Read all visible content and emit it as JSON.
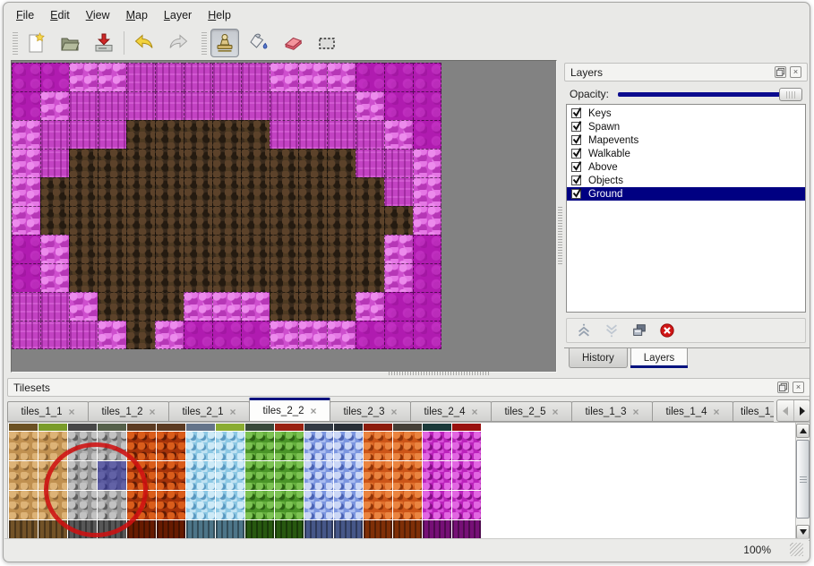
{
  "menu": {
    "items": [
      {
        "label": "File"
      },
      {
        "label": "Edit"
      },
      {
        "label": "View"
      },
      {
        "label": "Map"
      },
      {
        "label": "Layer"
      },
      {
        "label": "Help"
      }
    ]
  },
  "toolbar": {
    "groups": [
      {
        "buttons": [
          {
            "name": "new-file"
          },
          {
            "name": "open-file"
          },
          {
            "name": "save-file"
          }
        ]
      },
      {
        "buttons": [
          {
            "name": "undo"
          },
          {
            "name": "redo",
            "disabled": true
          }
        ]
      },
      {
        "buttons": [
          {
            "name": "stamp-tool",
            "active": true
          },
          {
            "name": "fill-tool"
          },
          {
            "name": "eraser-tool"
          },
          {
            "name": "rect-select-tool"
          }
        ]
      }
    ]
  },
  "map": {
    "legend": {
      "D": {
        "name": "dark-magenta-floor",
        "color": "#b01bb0"
      },
      "P": {
        "name": "pink-rock",
        "color": "#ce4fce"
      },
      "M": {
        "name": "magenta-wall-face",
        "color": "#c343c3"
      },
      "B": {
        "name": "dark-brown-rock",
        "color": "#3a2b1d"
      }
    },
    "grid": [
      "DDPPMMMMMPPPDDD",
      "DPMMMMMMMMMMPDD",
      "PMMMBBBBBMMMMPD",
      "PMBBBBBBBBBBMMP",
      "PBBBBBBBBBBBBMP",
      "PBBBBBBBBBBBBBP",
      "DPBBBBBBBBBBBPD",
      "DPBBBBBBBBBBBPD",
      "MMPBBBPPPBBBPDD",
      "MMMPBPDDDPPPDDD"
    ]
  },
  "layers_panel": {
    "title": "Layers",
    "float_icon": "float-icon",
    "close_icon": "close-icon",
    "opacity_label": "Opacity:",
    "opacity_percent": 100,
    "layers": [
      {
        "name": "Keys",
        "checked": true
      },
      {
        "name": "Spawn",
        "checked": true
      },
      {
        "name": "Mapevents",
        "checked": true
      },
      {
        "name": "Walkable",
        "checked": true
      },
      {
        "name": "Above",
        "checked": true
      },
      {
        "name": "Objects",
        "checked": true
      },
      {
        "name": "Ground",
        "checked": true,
        "selected": true
      }
    ],
    "toolbar_buttons": [
      {
        "name": "move-layer-up",
        "disabled": true
      },
      {
        "name": "move-layer-down",
        "disabled": true
      },
      {
        "name": "duplicate-layer"
      },
      {
        "name": "delete-layer"
      }
    ],
    "tabs": [
      {
        "label": "History",
        "active": false
      },
      {
        "label": "Layers",
        "active": true
      }
    ]
  },
  "tilesets_panel": {
    "title": "Tilesets",
    "tabs": [
      {
        "label": "tiles_1_1"
      },
      {
        "label": "tiles_1_2"
      },
      {
        "label": "tiles_2_1"
      },
      {
        "label": "tiles_2_2",
        "active": true
      },
      {
        "label": "tiles_2_3"
      },
      {
        "label": "tiles_2_4"
      },
      {
        "label": "tiles_2_5"
      },
      {
        "label": "tiles_1_3"
      },
      {
        "label": "tiles_1_4"
      },
      {
        "label": "tiles_1_",
        "truncated": true
      }
    ],
    "columns": [
      "tan",
      "tan",
      "gray",
      "gray",
      "lava",
      "lava",
      "sky",
      "sky",
      "green",
      "green",
      "crystal",
      "crystal",
      "orange",
      "orange",
      "magenta",
      "magenta"
    ],
    "sliver_colors": [
      "#6b5123",
      "#7a9c2a",
      "#474747",
      "#55604a",
      "#5c3b22",
      "#5c3b22",
      "#64748a",
      "#8aac32",
      "#39493a",
      "#992212",
      "#333a44",
      "#2a3038",
      "#8c1b0b",
      "#454038",
      "#1b3a3a",
      "#99110f"
    ],
    "selected_tile": {
      "row": 1,
      "col": 3
    },
    "annotation": {
      "shape": "red-circle",
      "color": "#ce1111"
    }
  },
  "status_bar": {
    "zoom": "100%"
  }
}
